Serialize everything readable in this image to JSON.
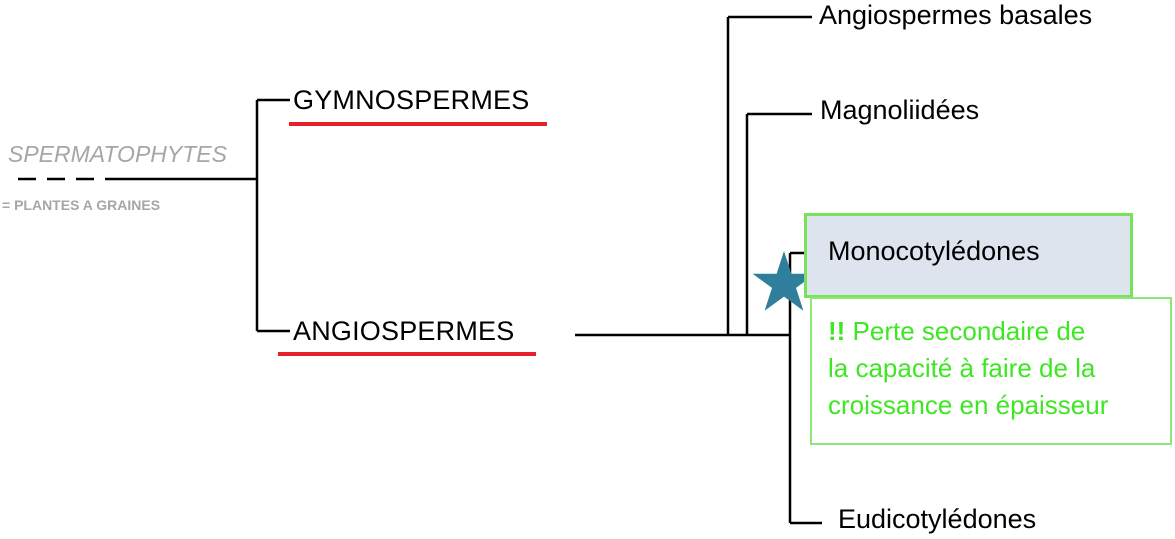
{
  "groups": {
    "spermatophytes": {
      "title": "SPERMATOPHYTES",
      "subtitle": "= PLANTES A GRAINES"
    },
    "gymnospermes": "GYMNOSPERMES",
    "angiospermes": "ANGIOSPERMES"
  },
  "angiosperm_clades": {
    "basal": "Angiospermes basales",
    "magnoliids": "Magnoliidées",
    "monocots": "Monocotylédones",
    "eudicots": "Eudicotylédones"
  },
  "note": {
    "bang": "!!",
    "line1_rest": " Perte secondaire  de",
    "line2": "la capacité à faire de la",
    "line3": "croissance en épaisseur"
  },
  "colors": {
    "underline": "#e8202a",
    "highlight_border": "#77e35a",
    "highlight_fill": "#dde4ee",
    "note_text": "#3ee623",
    "star": "#2e7e9c",
    "muted": "#a6a6a6"
  },
  "icons": {
    "event_marker": "star-icon"
  }
}
